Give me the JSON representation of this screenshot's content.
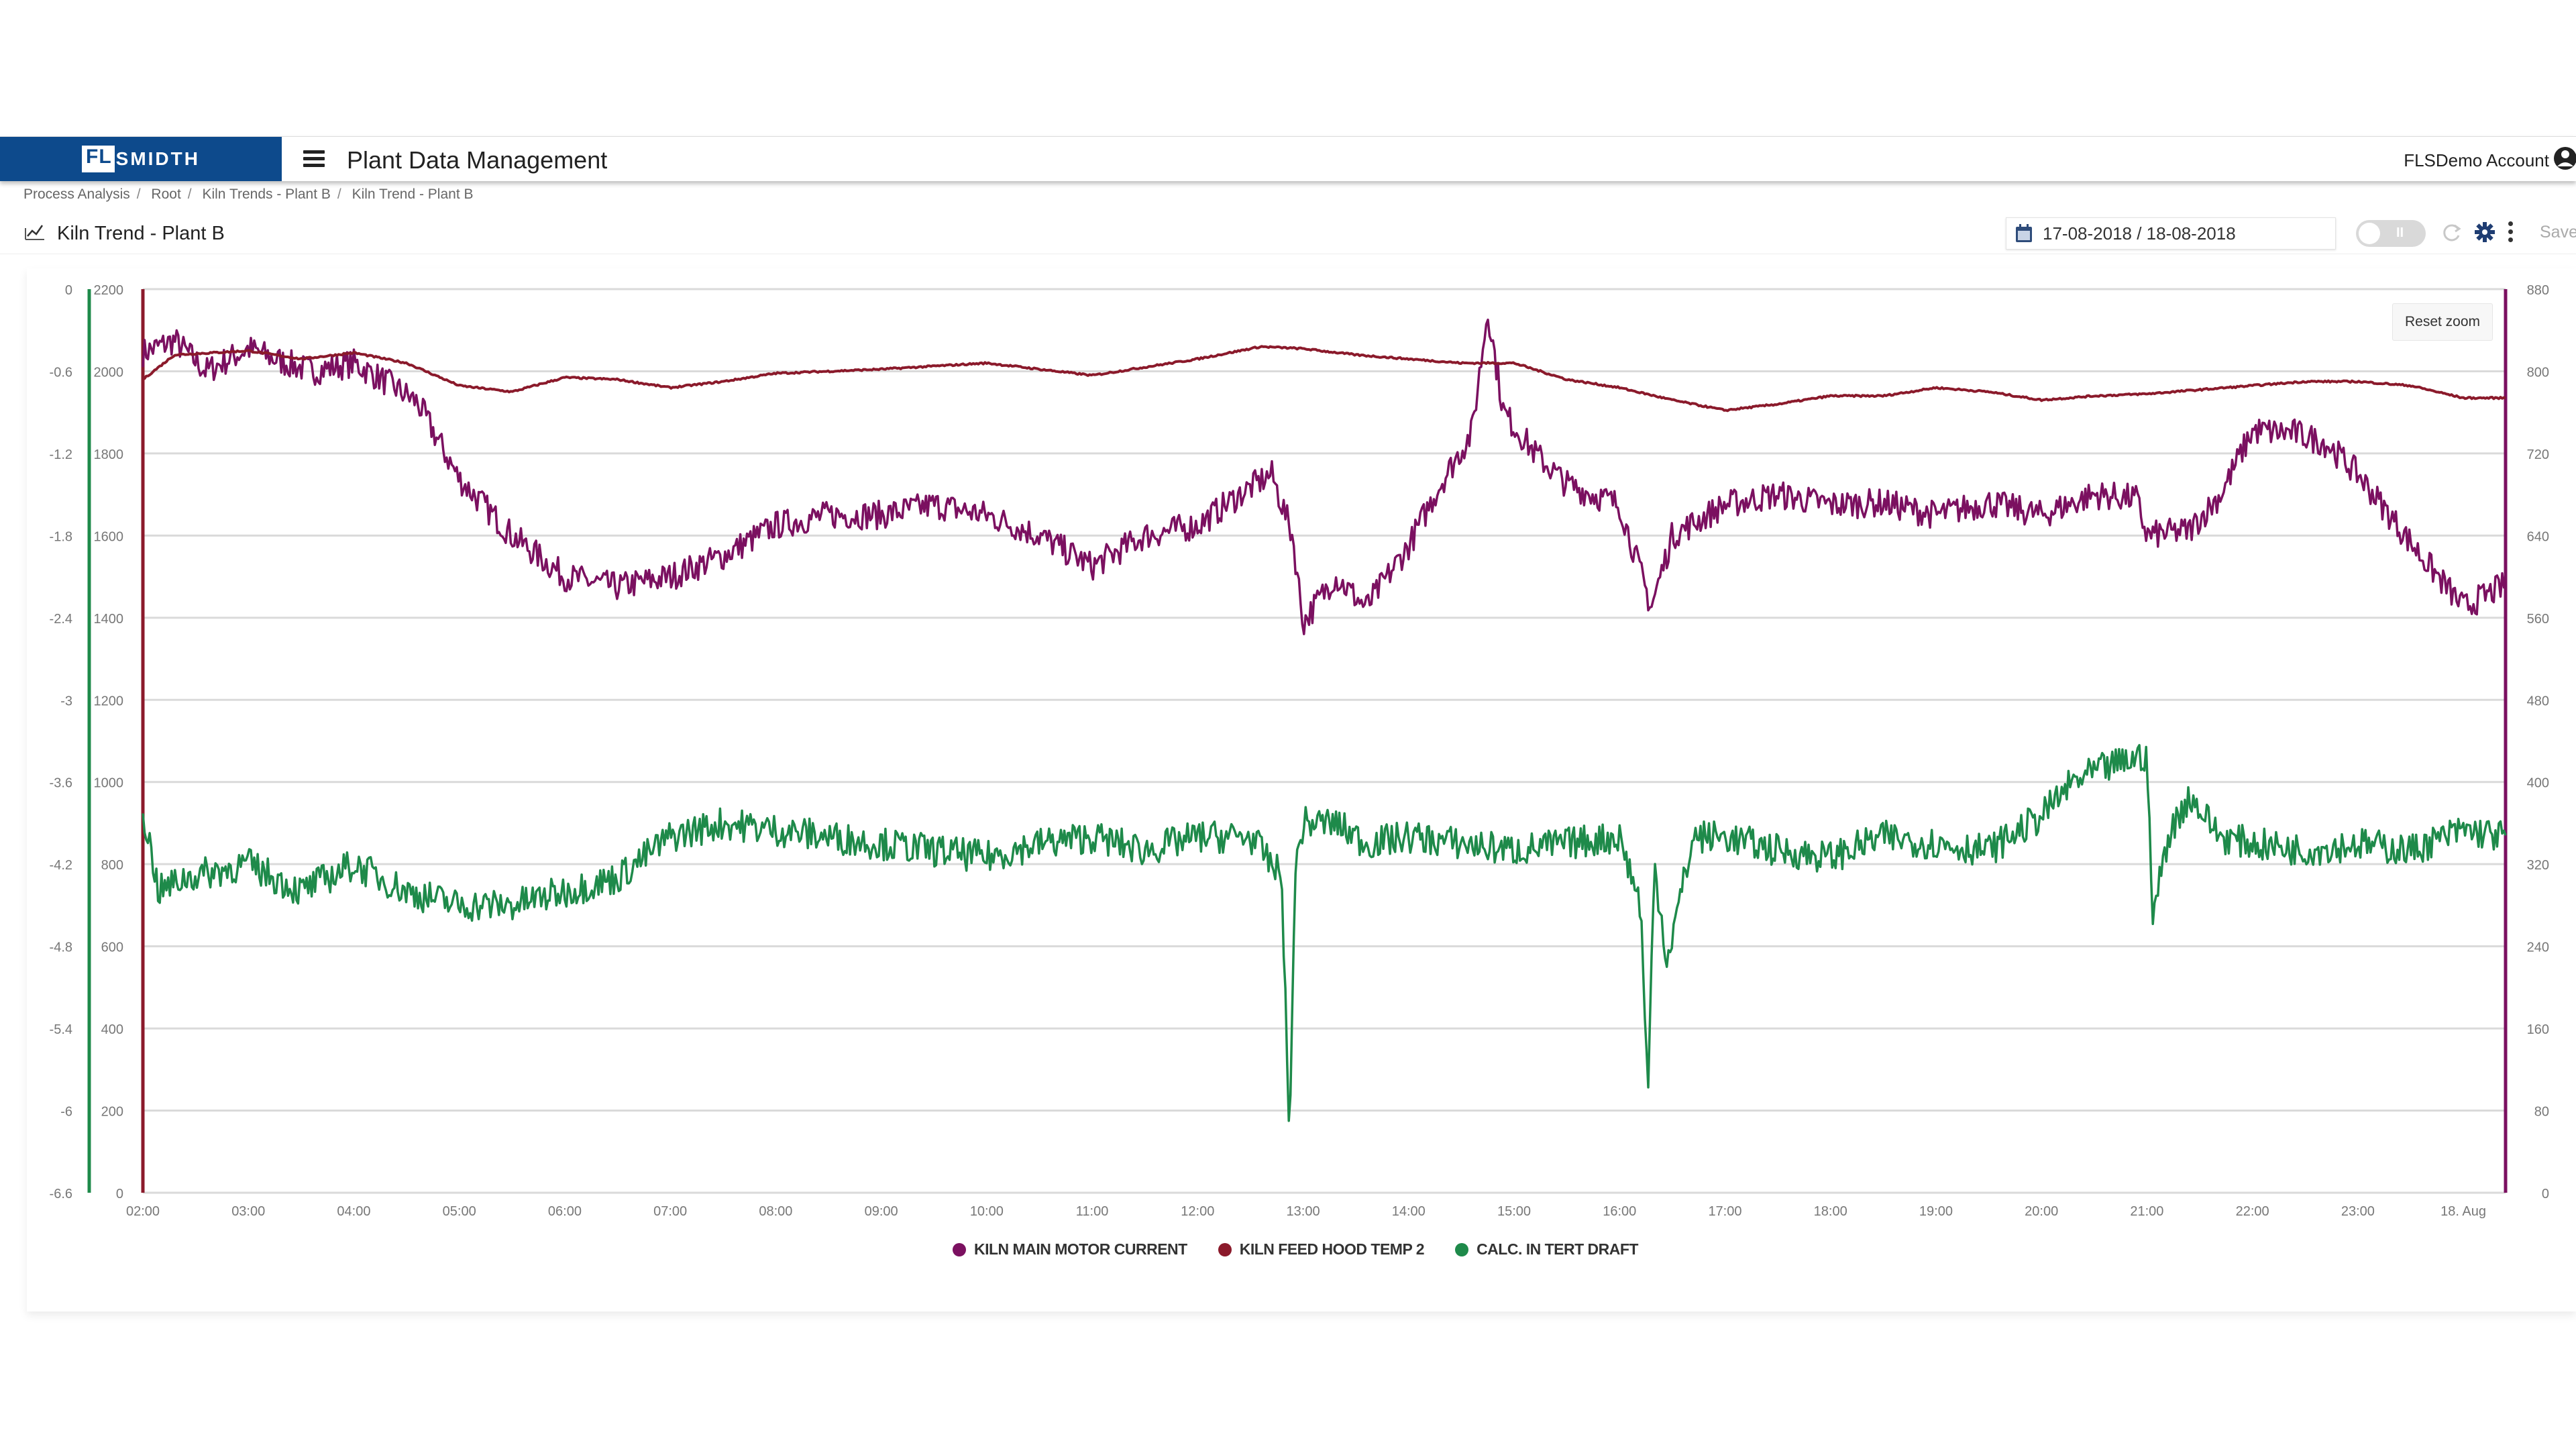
{
  "header": {
    "logo_fl": "FL",
    "logo_rest": "SMIDTH",
    "app_title": "Plant Data Management",
    "account_label": "FLSDemo Account",
    "brand_color": "#0d4a8c"
  },
  "breadcrumb": [
    "Process Analysis",
    "Root",
    "Kiln Trends - Plant B",
    "Kiln Trend - Plant B"
  ],
  "titlebar": {
    "page_title": "Kiln Trend - Plant B",
    "date_range": "17-08-2018 / 18-08-2018",
    "toggle_label": "II",
    "save_label": "Save"
  },
  "chart": {
    "reset_zoom_label": "Reset zoom"
  },
  "chart_data": {
    "type": "line",
    "title": "Kiln Trend - Plant B",
    "xlabel": "",
    "x_tick_labels": [
      "02:00",
      "03:00",
      "04:00",
      "05:00",
      "06:00",
      "07:00",
      "08:00",
      "09:00",
      "10:00",
      "11:00",
      "12:00",
      "13:00",
      "14:00",
      "15:00",
      "16:00",
      "17:00",
      "18:00",
      "19:00",
      "20:00",
      "21:00",
      "22:00",
      "23:00",
      "18. Aug"
    ],
    "x_range_hours": [
      2,
      24.4
    ],
    "grid": true,
    "legend_position": "bottom",
    "axes": {
      "left_outer": {
        "series": "CALC. IN TERT DRAFT",
        "color": "#1e8a4a",
        "range": [
          -6.6,
          0
        ],
        "ticks": [
          "0",
          "-0.6",
          "-1.2",
          "-1.8",
          "-2.4",
          "-3",
          "-3.6",
          "-4.2",
          "-4.8",
          "-5.4",
          "-6",
          "-6.6"
        ]
      },
      "left_inner": {
        "series": "KILN FEED HOOD TEMP 2",
        "color": "#8b1a2b",
        "range": [
          0,
          2200
        ],
        "ticks": [
          "2200",
          "2000",
          "1800",
          "1600",
          "1400",
          "1200",
          "1000",
          "800",
          "600",
          "400",
          "200",
          "0"
        ]
      },
      "right": {
        "series": "KILN MAIN MOTOR CURRENT",
        "color": "#7b1060",
        "range": [
          0,
          880
        ],
        "ticks": [
          "880",
          "800",
          "720",
          "640",
          "560",
          "480",
          "400",
          "320",
          "240",
          "160",
          "80",
          "0"
        ]
      }
    },
    "series": [
      {
        "name": "KILN MAIN MOTOR CURRENT",
        "color": "#7b1060",
        "axis": "right",
        "noise": 14,
        "x": [
          2.0,
          2.3,
          2.6,
          3.0,
          3.3,
          3.6,
          4.0,
          4.3,
          4.6,
          5.0,
          5.5,
          6.0,
          6.5,
          7.0,
          7.5,
          8.0,
          8.5,
          9.0,
          9.5,
          10.0,
          10.5,
          11.0,
          11.5,
          12.0,
          12.4,
          12.7,
          12.9,
          13.0,
          13.3,
          13.6,
          14.0,
          14.3,
          14.6,
          14.75,
          14.9,
          15.2,
          15.5,
          16.0,
          16.3,
          16.5,
          17.0,
          17.5,
          18.0,
          18.5,
          19.0,
          19.5,
          20.0,
          20.5,
          20.9,
          21.0,
          21.4,
          21.7,
          22.0,
          22.4,
          22.7,
          23.0,
          23.3,
          23.6,
          24.0,
          24.4
        ],
        "values": [
          818,
          830,
          800,
          822,
          810,
          800,
          808,
          790,
          770,
          695,
          640,
          600,
          590,
          600,
          620,
          650,
          660,
          660,
          670,
          660,
          640,
          610,
          640,
          650,
          680,
          700,
          640,
          555,
          600,
          570,
          630,
          690,
          740,
          860,
          760,
          720,
          690,
          670,
          570,
          640,
          670,
          680,
          670,
          672,
          660,
          672,
          660,
          680,
          676,
          640,
          645,
          680,
          742,
          740,
          730,
          700,
          660,
          620,
          570,
          592
        ],
        "range_observed": [
          545,
          860
        ]
      },
      {
        "name": "KILN FEED HOOD TEMP 2",
        "color": "#8b1a2b",
        "axis": "left_inner",
        "noise": 2,
        "x": [
          2.0,
          2.3,
          3.0,
          3.5,
          4.0,
          4.5,
          5.0,
          5.5,
          6.0,
          6.5,
          7.0,
          7.5,
          8.0,
          9.0,
          10.0,
          10.5,
          11.0,
          11.5,
          12.0,
          12.6,
          13.0,
          13.5,
          14.0,
          14.5,
          15.0,
          15.5,
          16.0,
          16.5,
          17.0,
          17.5,
          18.0,
          18.5,
          19.0,
          19.5,
          20.0,
          20.5,
          21.0,
          21.5,
          22.0,
          22.5,
          23.0,
          23.5,
          24.0,
          24.4
        ],
        "values": [
          1980,
          2040,
          2050,
          2030,
          2045,
          2020,
          1965,
          1950,
          1985,
          1980,
          1960,
          1975,
          1995,
          2005,
          2020,
          2005,
          1990,
          2010,
          2030,
          2060,
          2055,
          2040,
          2030,
          2020,
          2020,
          1980,
          1960,
          1930,
          1905,
          1920,
          1940,
          1940,
          1960,
          1950,
          1930,
          1940,
          1945,
          1955,
          1965,
          1975,
          1975,
          1965,
          1935,
          1935
        ],
        "range_observed": [
          1890,
          2070
        ]
      },
      {
        "name": "CALC. IN TERT DRAFT",
        "color": "#1e8a4a",
        "axis": "left_outer",
        "noise": 0.12,
        "x": [
          2.0,
          2.15,
          2.4,
          3.0,
          3.5,
          4.0,
          4.5,
          5.0,
          5.5,
          6.0,
          6.5,
          7.0,
          7.5,
          8.0,
          8.5,
          9.0,
          9.5,
          10.0,
          10.5,
          11.0,
          11.5,
          12.0,
          12.5,
          12.8,
          12.87,
          12.92,
          13.0,
          13.3,
          13.6,
          14.0,
          14.5,
          15.0,
          15.5,
          16.0,
          16.2,
          16.27,
          16.33,
          16.45,
          16.7,
          17.0,
          17.5,
          18.0,
          18.5,
          19.0,
          19.5,
          20.0,
          20.3,
          20.6,
          21.0,
          21.05,
          21.2,
          21.4,
          21.7,
          22.0,
          22.5,
          23.0,
          23.5,
          24.0,
          24.4
        ],
        "values": [
          -3.8,
          -4.4,
          -4.3,
          -4.2,
          -4.4,
          -4.2,
          -4.4,
          -4.5,
          -4.5,
          -4.4,
          -4.3,
          -4.0,
          -3.9,
          -3.95,
          -4.0,
          -4.05,
          -4.1,
          -4.15,
          -4.05,
          -4.0,
          -4.1,
          -4.0,
          -4.0,
          -4.3,
          -6.3,
          -4.3,
          -3.9,
          -3.9,
          -4.05,
          -4.0,
          -4.05,
          -4.1,
          -4.05,
          -4.0,
          -4.5,
          -5.9,
          -4.2,
          -4.9,
          -4.0,
          -4.0,
          -4.1,
          -4.15,
          -4.0,
          -4.05,
          -4.1,
          -3.85,
          -3.6,
          -3.5,
          -3.4,
          -4.6,
          -4.0,
          -3.7,
          -4.0,
          -4.05,
          -4.1,
          -4.05,
          -4.1,
          -3.95,
          -4.0
        ],
        "range_observed": [
          -6.3,
          -3.4
        ]
      }
    ],
    "legend": [
      {
        "label": "KILN MAIN MOTOR CURRENT",
        "color": "#7b1060"
      },
      {
        "label": "KILN FEED HOOD TEMP 2",
        "color": "#8b1a2b"
      },
      {
        "label": "CALC. IN TERT DRAFT",
        "color": "#1e8a4a"
      }
    ]
  }
}
